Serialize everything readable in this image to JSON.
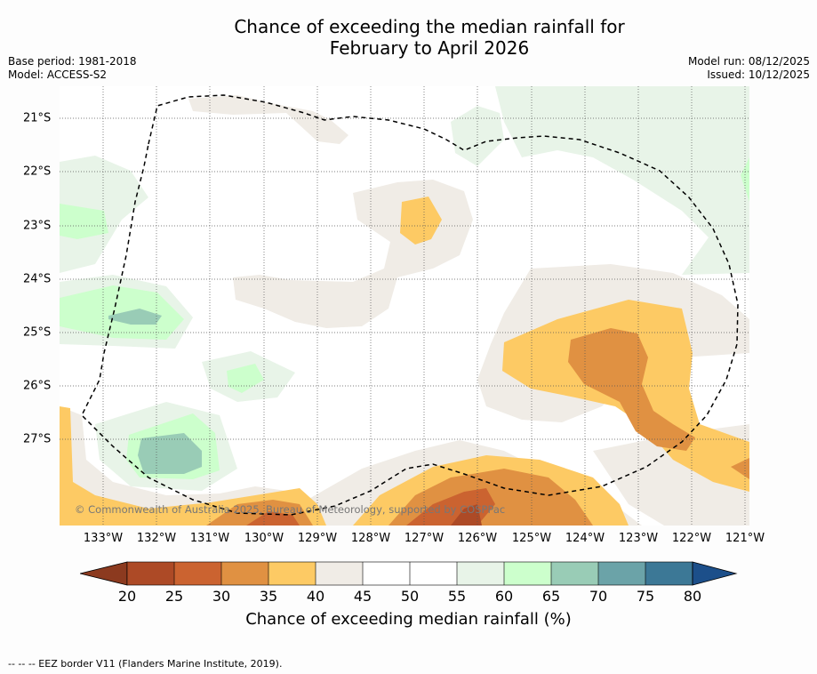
{
  "title": {
    "line1": "Chance of exceeding the median rainfall for",
    "line2": "February to April 2026"
  },
  "meta": {
    "base_period": "Base period: 1981-2018",
    "model": "Model: ACCESS-S2",
    "model_run": "Model run: 08/12/2025",
    "issued": "Issued: 10/12/2025"
  },
  "map": {
    "copyright": "© Commonwealth of Australia 2025, Bureau of Meteorology, supported by COSPPac",
    "lon_labels": [
      "133°W",
      "132°W",
      "131°W",
      "130°W",
      "129°W",
      "128°W",
      "127°W",
      "126°W",
      "125°W",
      "124°W",
      "123°W",
      "122°W",
      "121°W"
    ],
    "lat_labels": [
      "21°S",
      "22°S",
      "23°S",
      "24°S",
      "25°S",
      "26°S",
      "27°S"
    ]
  },
  "colorbar": {
    "title": "Chance of exceeding median rainfall (%)",
    "ticks": [
      "20",
      "25",
      "30",
      "35",
      "40",
      "45",
      "50",
      "55",
      "60",
      "65",
      "70",
      "75",
      "80"
    ],
    "colors": {
      "lt20": "#8c3a1f",
      "c20_25": "#ad4a26",
      "c25_30": "#cb6330",
      "c30_35": "#e09142",
      "c35_40": "#fdca64",
      "c40_45": "#f0ece6",
      "c45_55": "#ffffff",
      "c55_60": "#e8f4e8",
      "c60_65": "#ccffcc",
      "c65_70": "#99ccb6",
      "c70_75": "#6ba3a8",
      "c75_80": "#3c7896",
      "gt80": "#1c4f8a"
    }
  },
  "footer": "--  --  -- EEZ border V11 (Flanders Marine Institute, 2019)."
}
